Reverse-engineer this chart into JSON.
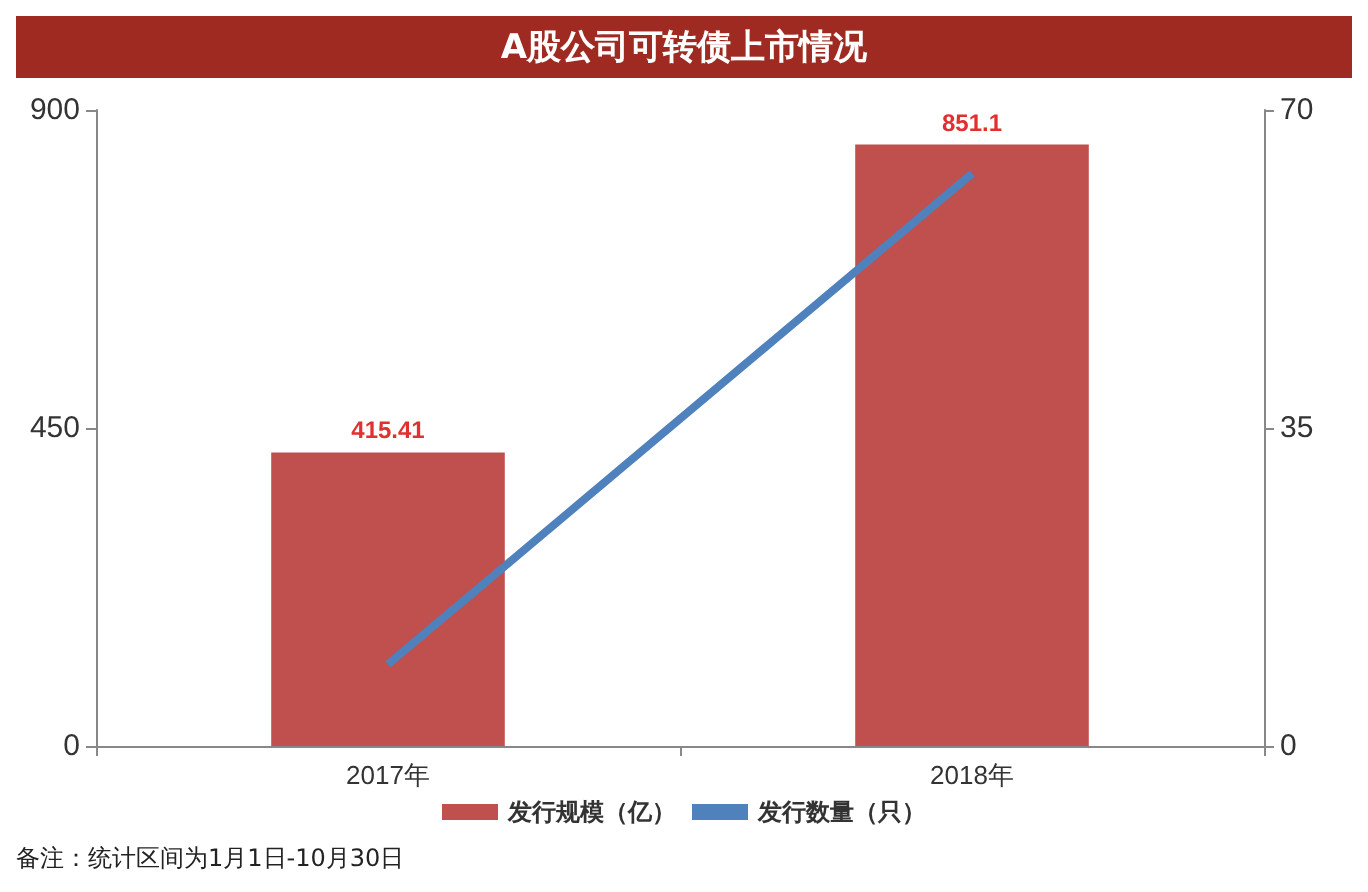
{
  "chart_data": {
    "type": "bar",
    "title": "A股公司可转债上市情况",
    "categories": [
      "2017年",
      "2018年"
    ],
    "series": [
      {
        "name": "发行规模（亿）",
        "color": "#c0504d",
        "values": [
          415.41,
          851.1
        ],
        "value_labels": [
          "415.41",
          "851.1"
        ]
      },
      {
        "name": "发行数量（只）",
        "type": "line",
        "axis": "y2",
        "color": "#4f81bd",
        "values": [
          9,
          63
        ]
      }
    ],
    "ylim": [
      0,
      900
    ],
    "yticks": [
      0,
      450,
      900
    ],
    "y2lim": [
      0,
      70
    ],
    "y2ticks": [
      0,
      35,
      70
    ],
    "grid": false,
    "legend": "bottom",
    "marker": "none",
    "annotations": [
      "备注：统计区间为1月1日-10月30日"
    ]
  }
}
